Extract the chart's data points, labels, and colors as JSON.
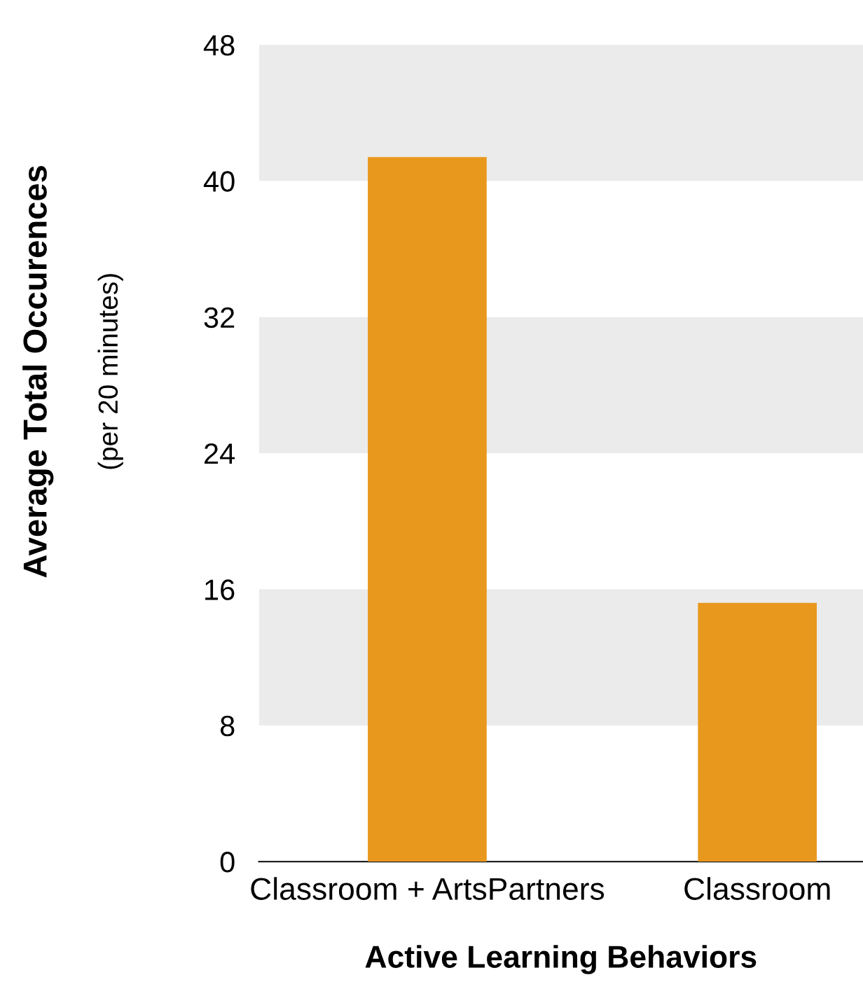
{
  "chart_data": {
    "type": "bar",
    "categories": [
      "Classroom + ArtsPartners",
      "Classroom"
    ],
    "values": [
      41.4,
      15.2
    ],
    "color": "#e8981c",
    "ylim": [
      0,
      48
    ],
    "yticks": [
      0,
      8,
      16,
      24,
      32,
      40,
      48
    ],
    "xlabel": "Active Learning Behaviors",
    "ylabel": "Average Total Occurences",
    "annotations": [
      "(per 20 minutes)"
    ],
    "bands": [
      {
        "axis": "y",
        "from": 8,
        "to": 16,
        "color": "#ebebeb"
      },
      {
        "axis": "y",
        "from": 24,
        "to": 32,
        "color": "#ebebeb"
      },
      {
        "axis": "y",
        "from": 40,
        "to": 48,
        "color": "#ebebeb"
      }
    ],
    "grid": false,
    "legend": false
  }
}
